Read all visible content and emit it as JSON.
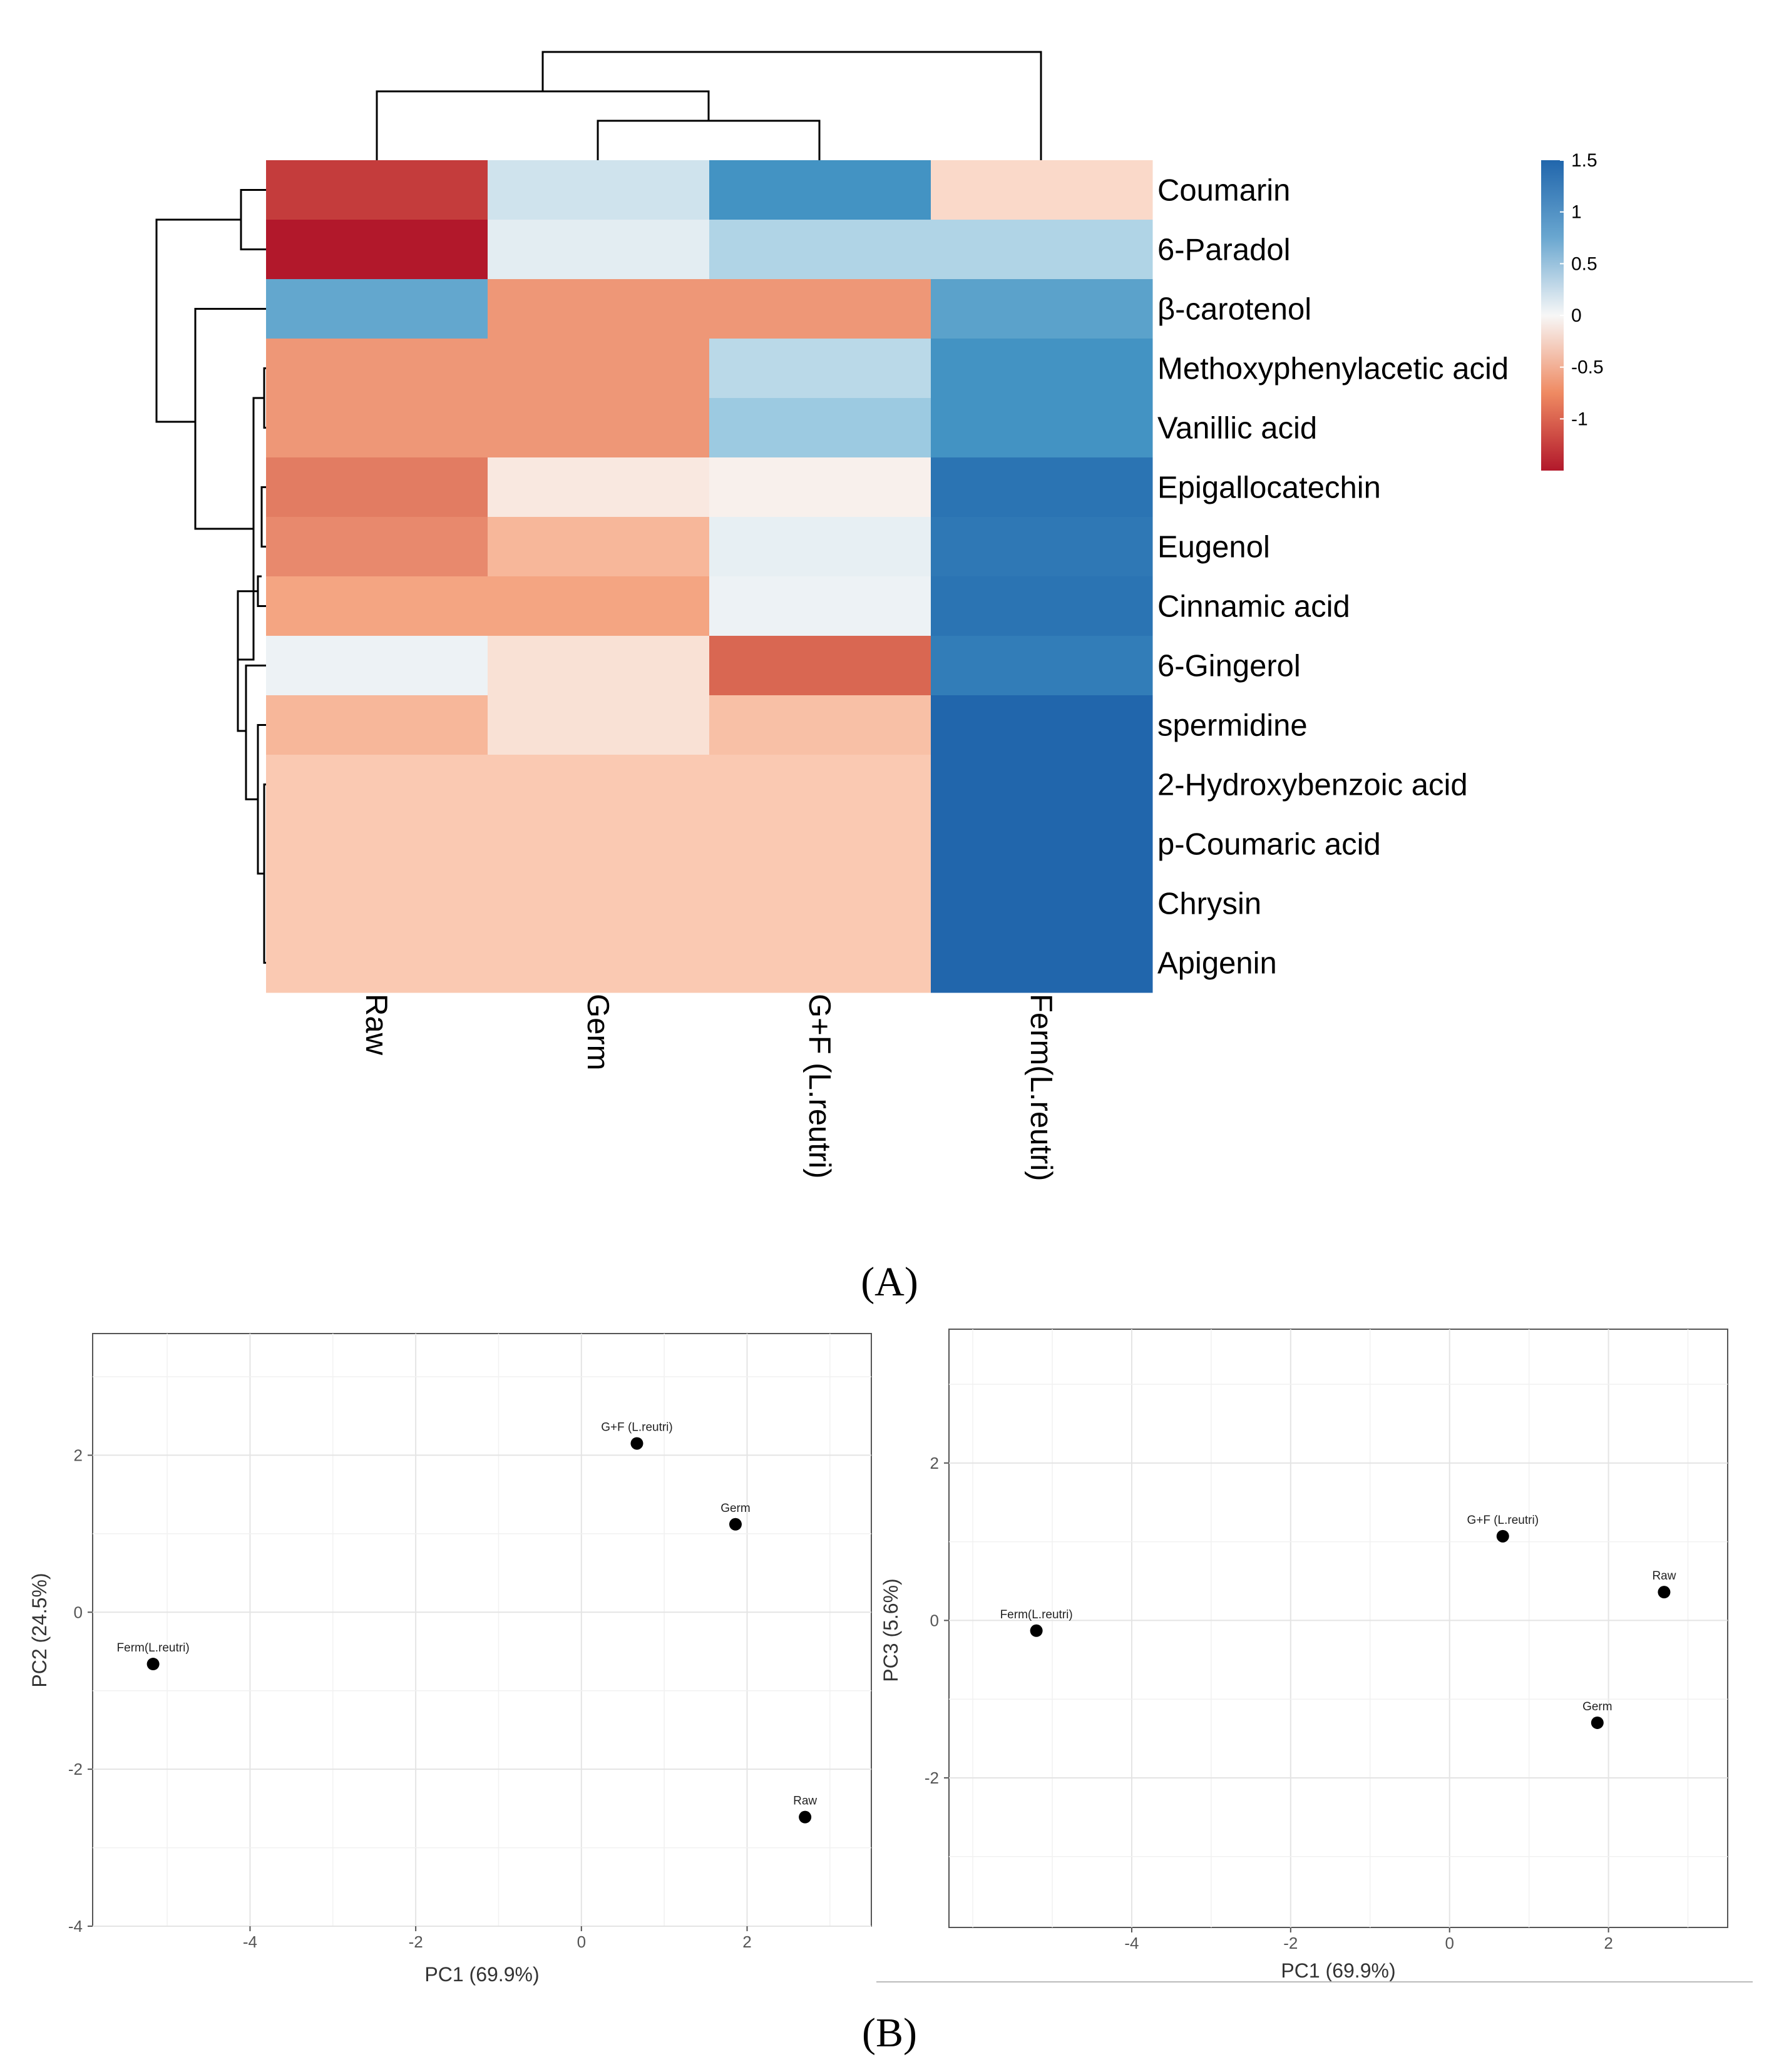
{
  "panel_labels": {
    "a": "(A)",
    "b": "(B)"
  },
  "chart_data": [
    {
      "type": "heatmap",
      "title": "",
      "columns": [
        "Raw",
        "Germ",
        "G+F (L.reutri)",
        "Ferm(L.reutri)"
      ],
      "rows": [
        "Coumarin",
        "6-Paradol",
        "β-carotenol",
        "Methoxyphenylacetic acid",
        "Vanillic acid",
        "Epigallocatechin",
        "Eugenol",
        "Cinnamic acid",
        "6-Gingerol",
        "spermidine",
        "2-Hydroxybenzoic acid",
        "p-Coumaric acid",
        "Chrysin",
        "Apigenin"
      ],
      "values": [
        [
          -1.25,
          0.2,
          1.0,
          -0.2
        ],
        [
          -1.5,
          0.1,
          0.35,
          0.35
        ],
        [
          0.8,
          -0.6,
          -0.6,
          0.85
        ],
        [
          -0.6,
          -0.6,
          0.3,
          1.0
        ],
        [
          -0.6,
          -0.6,
          0.45,
          1.0
        ],
        [
          -0.8,
          -0.1,
          -0.05,
          1.35
        ],
        [
          -0.7,
          -0.4,
          0.08,
          1.3
        ],
        [
          -0.5,
          -0.5,
          0.05,
          1.35
        ],
        [
          0.05,
          -0.15,
          -0.95,
          1.25
        ],
        [
          -0.4,
          -0.15,
          -0.35,
          1.5
        ],
        [
          -0.3,
          -0.3,
          -0.3,
          1.5
        ],
        [
          -0.3,
          -0.3,
          -0.3,
          1.5
        ],
        [
          -0.3,
          -0.3,
          -0.3,
          1.5
        ],
        [
          -0.3,
          -0.3,
          -0.3,
          1.5
        ]
      ],
      "color_scale": {
        "min": -1.5,
        "max": 1.5,
        "low_color": "#b2182b",
        "mid_color": "#f7f7f7",
        "high_color": "#2166ac"
      },
      "legend_ticks": [
        "1.5",
        "1",
        "0.5",
        "0",
        "-0.5",
        "-1"
      ],
      "legend_tick_values": [
        1.5,
        1,
        0.5,
        0,
        -0.5,
        -1
      ]
    },
    {
      "type": "scatter",
      "xlabel": "PC1 (69.9%)",
      "ylabel": "PC2 (24.5%)",
      "xlim": [
        -5.9,
        3.5
      ],
      "ylim": [
        -4.0,
        3.55
      ],
      "xticks": [
        -4,
        -2,
        0,
        2
      ],
      "yticks": [
        2,
        0,
        -2,
        -4
      ],
      "tick_labels_x": [
        "-4",
        "-2",
        "0",
        "2"
      ],
      "tick_labels_y": [
        "2",
        "0",
        "-2",
        "-4"
      ],
      "points": [
        {
          "label": "G+F (L.reutri)",
          "x": 0.67,
          "y": 2.15
        },
        {
          "label": "Germ",
          "x": 1.86,
          "y": 1.12
        },
        {
          "label": "Ferm(L.reutri)",
          "x": -5.17,
          "y": -0.66
        },
        {
          "label": "Raw",
          "x": 2.7,
          "y": -2.61
        }
      ]
    },
    {
      "type": "scatter",
      "xlabel": "PC1 (69.9%)",
      "ylabel": "PC3 (5.6%)",
      "xlim": [
        -6.3,
        3.5
      ],
      "ylim": [
        -3.9,
        3.7
      ],
      "xticks": [
        -4,
        -2,
        0,
        2
      ],
      "yticks": [
        2,
        0,
        -2
      ],
      "tick_labels_x": [
        "-4",
        "-2",
        "0",
        "2"
      ],
      "tick_labels_y": [
        "2",
        "0",
        "-2"
      ],
      "points": [
        {
          "label": "G+F (L.reutri)",
          "x": 0.67,
          "y": 1.07
        },
        {
          "label": "Raw",
          "x": 2.7,
          "y": 0.36
        },
        {
          "label": "Ferm(L.reutri)",
          "x": -5.2,
          "y": -0.13
        },
        {
          "label": "Germ",
          "x": 1.86,
          "y": -1.3
        }
      ]
    }
  ]
}
